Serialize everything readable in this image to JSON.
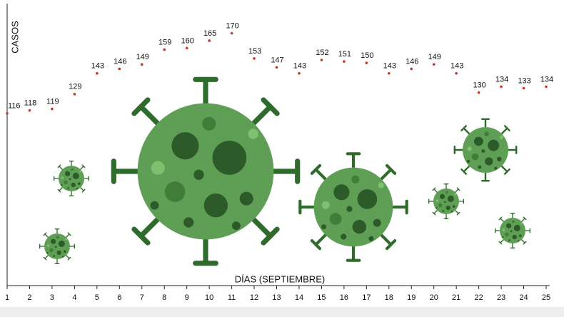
{
  "chart_data": {
    "type": "scatter",
    "x_label": "DÍAS (SEPTIEMBRE)",
    "y_label": "CASOS",
    "x": [
      1,
      2,
      3,
      4,
      5,
      6,
      7,
      8,
      9,
      10,
      11,
      12,
      13,
      14,
      15,
      16,
      17,
      18,
      19,
      20,
      21,
      22,
      23,
      24,
      25
    ],
    "values": [
      116,
      118,
      119,
      129,
      143,
      146,
      149,
      159,
      160,
      165,
      170,
      153,
      147,
      143,
      152,
      151,
      150,
      143,
      146,
      149,
      143,
      130,
      134,
      133,
      134
    ],
    "color": "#c0392b",
    "xlim": [
      1,
      25
    ],
    "xticks": [
      1,
      2,
      3,
      4,
      5,
      6,
      7,
      8,
      9,
      10,
      11,
      12,
      13,
      14,
      15,
      16,
      17,
      18,
      19,
      20,
      21,
      22,
      23,
      24,
      25
    ],
    "ylim": [
      0,
      190
    ]
  }
}
